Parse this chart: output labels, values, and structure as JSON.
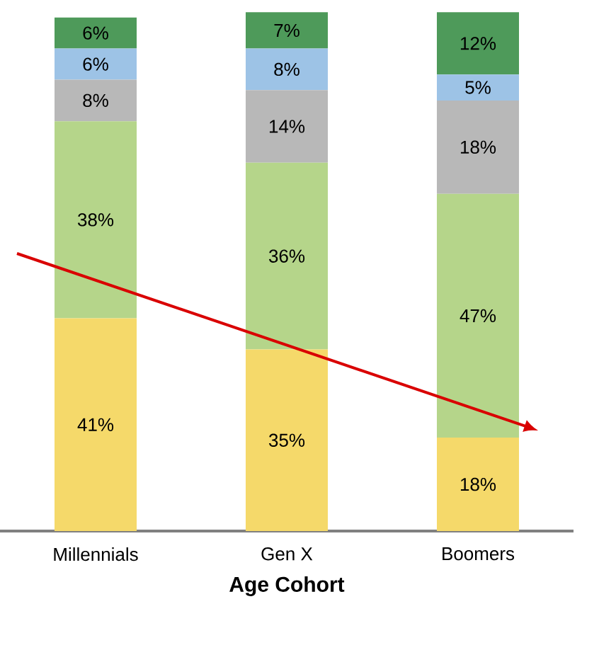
{
  "chart_data": {
    "type": "bar",
    "stacked": true,
    "xlabel": "Age Cohort",
    "categories": [
      "Millennials",
      "Gen X",
      "Boomers"
    ],
    "series": [
      {
        "color": "#f5d96a",
        "values": [
          41,
          35,
          18
        ],
        "value_labels": [
          "41%",
          "35%",
          "18%"
        ]
      },
      {
        "color": "#b5d58a",
        "values": [
          38,
          36,
          47
        ],
        "value_labels": [
          "38%",
          "36%",
          "47%"
        ]
      },
      {
        "color": "#b8b8b8",
        "values": [
          8,
          14,
          18
        ],
        "value_labels": [
          "8%",
          "14%",
          "18%"
        ]
      },
      {
        "color": "#9dc3e6",
        "values": [
          6,
          8,
          5
        ],
        "value_labels": [
          "6%",
          "8%",
          "5%"
        ]
      },
      {
        "color": "#4e9a5a",
        "values": [
          6,
          7,
          12
        ],
        "value_labels": [
          "6%",
          "7%",
          "12%"
        ]
      }
    ]
  }
}
